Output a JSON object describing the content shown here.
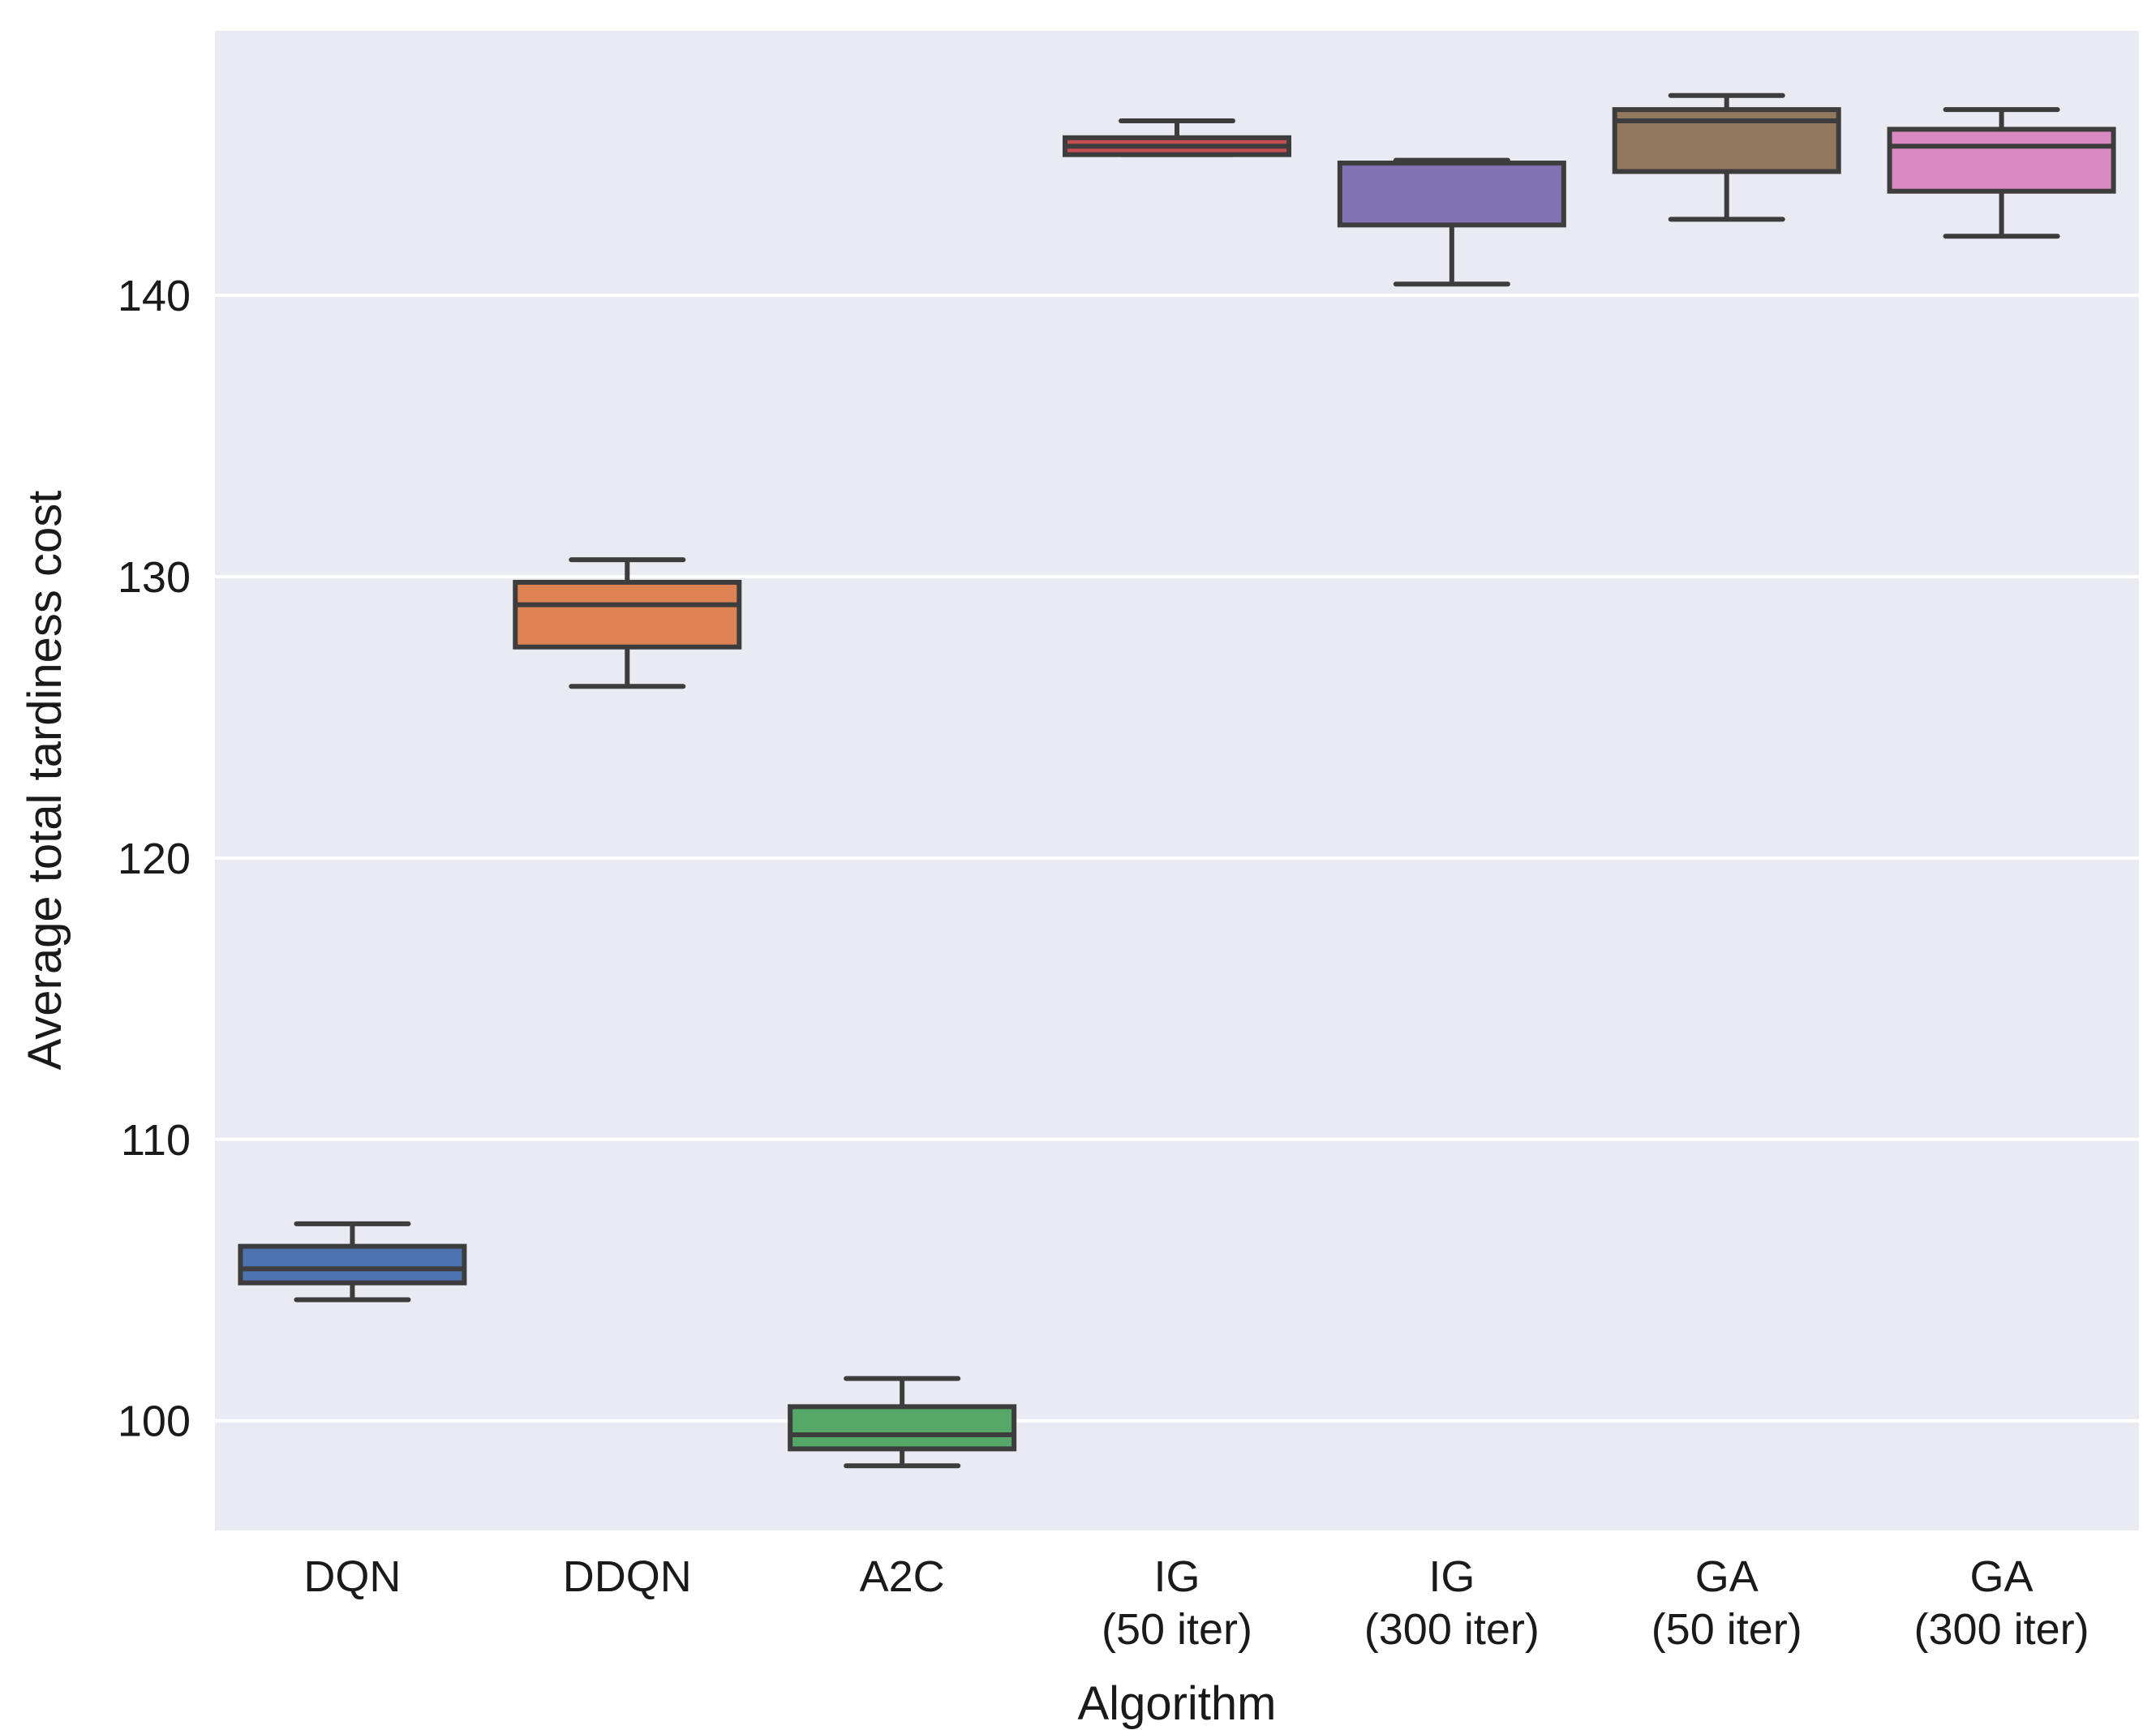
{
  "chart_data": {
    "type": "boxplot",
    "xlabel": "Algorithm",
    "ylabel": "Average total tardiness cost",
    "ylim": [
      96.1,
      149.4
    ],
    "yticks": [
      100,
      110,
      120,
      130,
      140
    ],
    "grid": true,
    "background_color": "#eaeaf2",
    "grid_color": "#ffffff",
    "edge_color": "#3d3d3d",
    "categories": [
      {
        "line1": "DQN",
        "line2": ""
      },
      {
        "line1": "DDQN",
        "line2": ""
      },
      {
        "line1": "A2C",
        "line2": ""
      },
      {
        "line1": "IG",
        "line2": "(50 iter)"
      },
      {
        "line1": "IG",
        "line2": "(300 iter)"
      },
      {
        "line1": "GA",
        "line2": "(50 iter)"
      },
      {
        "line1": "GA",
        "line2": "(300 iter)"
      }
    ],
    "boxes": [
      {
        "name": "DQN",
        "color": "#4c72b0",
        "whisker_low": 104.3,
        "q1": 104.9,
        "median": 105.4,
        "q3": 106.2,
        "whisker_high": 107.0
      },
      {
        "name": "DDQN",
        "color": "#dd8452",
        "whisker_low": 126.1,
        "q1": 127.5,
        "median": 129.0,
        "q3": 129.8,
        "whisker_high": 130.6
      },
      {
        "name": "A2C",
        "color": "#55a868",
        "whisker_low": 98.4,
        "q1": 99.0,
        "median": 99.5,
        "q3": 100.5,
        "whisker_high": 101.5
      },
      {
        "name": "IG (50 iter)",
        "color": "#c44e52",
        "whisker_low": 145.0,
        "q1": 145.0,
        "median": 145.3,
        "q3": 145.6,
        "whisker_high": 146.2
      },
      {
        "name": "IG (300 iter)",
        "color": "#8172b3",
        "whisker_low": 140.4,
        "q1": 142.5,
        "median": 144.7,
        "q3": 144.7,
        "whisker_high": 144.8
      },
      {
        "name": "GA (50 iter)",
        "color": "#937860",
        "whisker_low": 142.7,
        "q1": 144.4,
        "median": 146.2,
        "q3": 146.6,
        "whisker_high": 147.1
      },
      {
        "name": "GA (300 iter)",
        "color": "#da8bc3",
        "whisker_low": 142.1,
        "q1": 143.7,
        "median": 145.3,
        "q3": 145.9,
        "whisker_high": 146.6
      }
    ]
  }
}
